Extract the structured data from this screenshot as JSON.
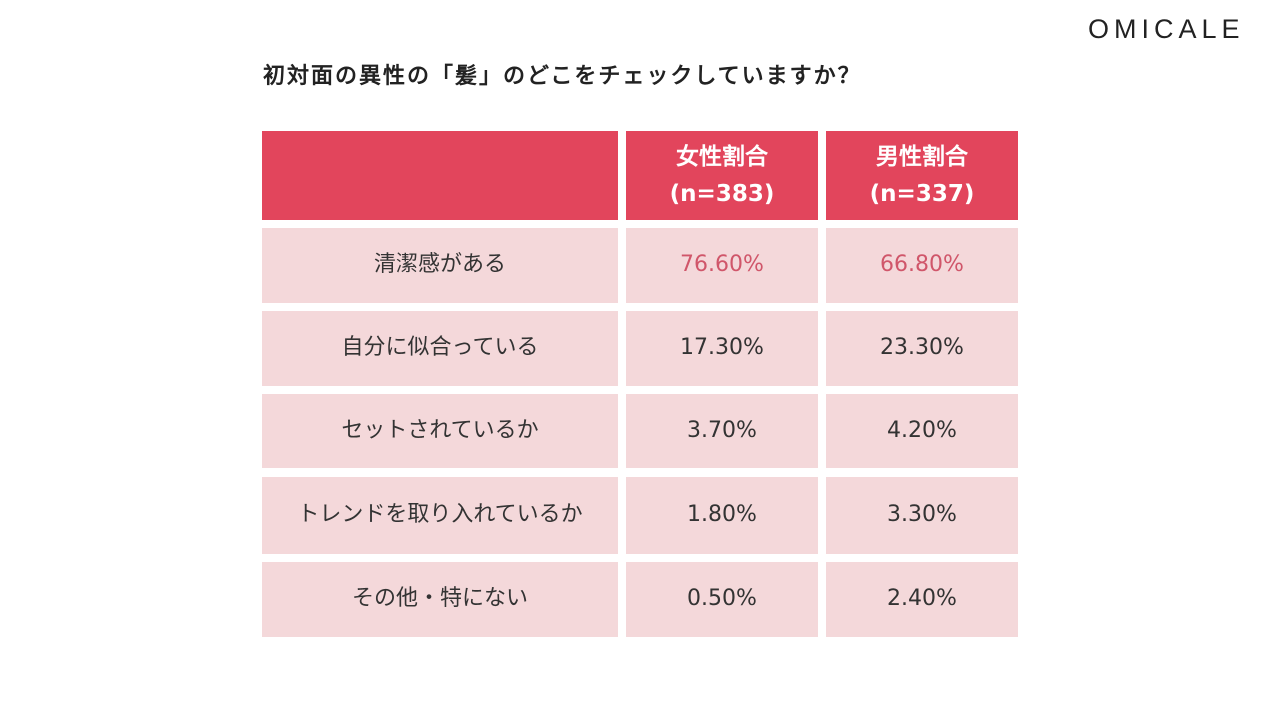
{
  "logo": "OMICALE",
  "chart_data": {
    "type": "table",
    "title": "初対面の異性の「髪」のどこをチェックしていますか？",
    "columns": [
      {
        "label": "女性割合",
        "n": "(n=383)"
      },
      {
        "label": "男性割合",
        "n": "(n=337)"
      }
    ],
    "rows": [
      {
        "label": "清潔感がある",
        "values": [
          "76.60%",
          "66.80%"
        ],
        "highlight": true
      },
      {
        "label": "自分に似合っている",
        "values": [
          "17.30%",
          "23.30%"
        ]
      },
      {
        "label": "セットされているか",
        "values": [
          "3.70%",
          "4.20%"
        ]
      },
      {
        "label": "トレンドを取り入れているか",
        "values": [
          "1.80%",
          "3.30%"
        ]
      },
      {
        "label": "その他・特にない",
        "values": [
          "0.50%",
          "2.40%"
        ]
      }
    ]
  },
  "colors": {
    "header": "#e2455c",
    "cell": "#f4d8da",
    "highlight_text": "#d0566a"
  }
}
